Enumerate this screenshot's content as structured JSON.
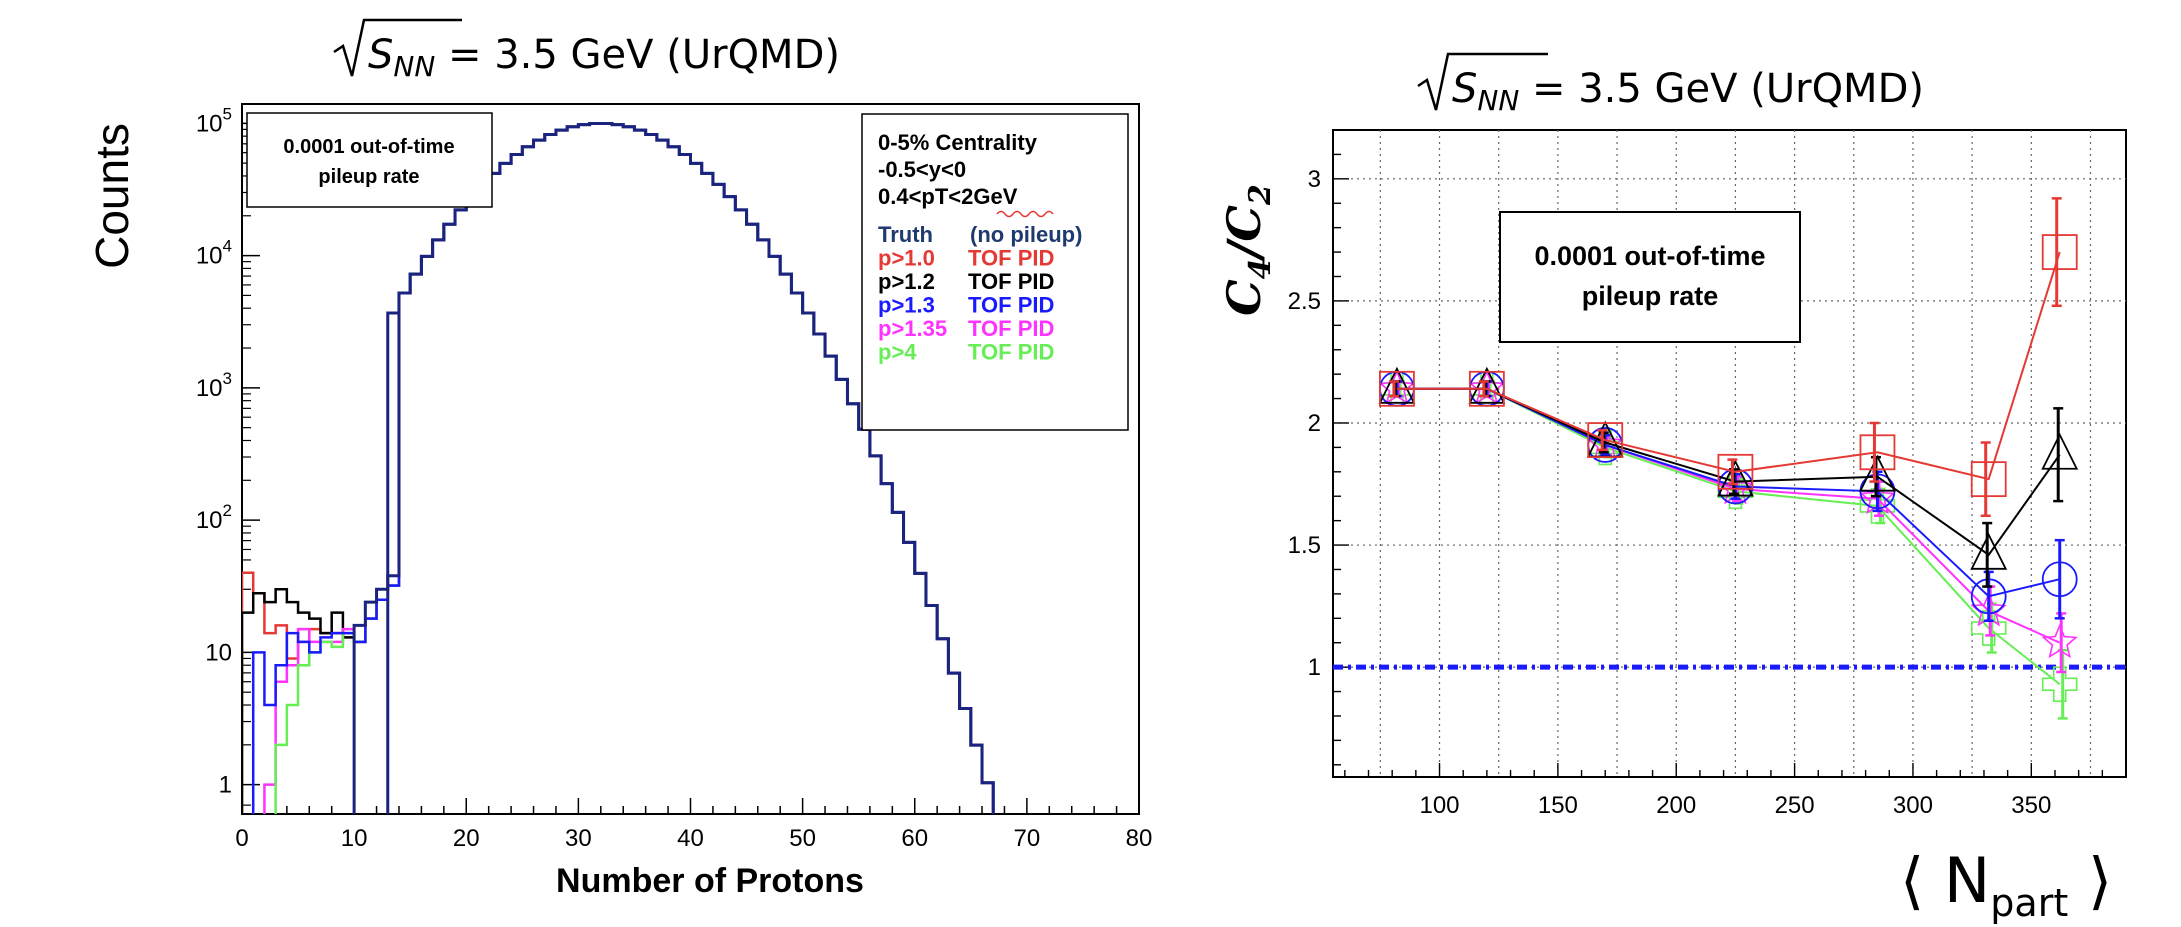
{
  "colors": {
    "truth": "#1a237e",
    "p10": "#e53935",
    "p12": "#000000",
    "p13": "#1a1aff",
    "p135": "#ff33ff",
    "p4": "#66ee55",
    "ref": "#1a1aff",
    "legend_truth_label": "#1f3a6e"
  },
  "chart_data": [
    {
      "type": "line",
      "title_sym": "S",
      "title_sub": "NN",
      "title_text": " = 3.5 GeV  (UrQMD)",
      "xlabel": "Number of Protons",
      "ylabel": "Counts",
      "yscale": "log",
      "xlim": [
        0,
        80
      ],
      "ylim": [
        0.6,
        140000
      ],
      "xticks": [
        "0",
        "10",
        "20",
        "30",
        "40",
        "50",
        "60",
        "70",
        "80"
      ],
      "yticks": [
        {
          "v": 1,
          "label": "1"
        },
        {
          "v": 10,
          "label": "10"
        },
        {
          "v": 100,
          "label": "10",
          "sup": "2"
        },
        {
          "v": 1000,
          "label": "10",
          "sup": "3"
        },
        {
          "v": 10000,
          "label": "10",
          "sup": "4"
        },
        {
          "v": 100000,
          "label": "10",
          "sup": "5"
        }
      ],
      "annotation": [
        "0.0001 out-of-time",
        "pileup rate"
      ],
      "legend_header": [
        "0-5% Centrality",
        "-0.5<y<0",
        "0.4<pT<2GeV"
      ],
      "legend": [
        {
          "name": "Truth",
          "desc": "(no pileup)",
          "color_key": "truth",
          "label_color_key": "legend_truth_label"
        },
        {
          "name": "p>1.0",
          "desc": "TOF PID",
          "color_key": "p10"
        },
        {
          "name": "p>1.2",
          "desc": "TOF PID",
          "color_key": "p12"
        },
        {
          "name": "p>1.3",
          "desc": "TOF PID",
          "color_key": "p13"
        },
        {
          "name": "p>1.35",
          "desc": "TOF PID",
          "color_key": "p135"
        },
        {
          "name": "p>4",
          "desc": "TOF PID",
          "color_key": "p4"
        }
      ],
      "truth_peak": {
        "mean": 32,
        "sigma": 7.2,
        "amplitude": 100000
      },
      "truth_tail": [
        {
          "x": 60,
          "y": 3
        },
        {
          "x": 61,
          "y": 3
        },
        {
          "x": 62,
          "y": 1.5
        },
        {
          "x": 63,
          "y": 1.5
        }
      ],
      "low_bins": [
        0,
        1,
        2,
        3,
        4,
        5,
        6,
        7,
        8,
        9,
        10,
        11,
        12,
        13
      ],
      "low_series": [
        {
          "color_key": "p10",
          "values": [
            40,
            28,
            14,
            16,
            9,
            12,
            15,
            14,
            14,
            13,
            12,
            18,
            25,
            32
          ]
        },
        {
          "color_key": "p12",
          "values": [
            20,
            28,
            24,
            30,
            24,
            20,
            18,
            14,
            20,
            13,
            12,
            18,
            25,
            32
          ]
        },
        {
          "color_key": "p135",
          "values": [
            0,
            0,
            1,
            6,
            8,
            15,
            12,
            12,
            12,
            15,
            12,
            18,
            25,
            32
          ]
        },
        {
          "color_key": "p4",
          "values": [
            0,
            0,
            0,
            2,
            4,
            8,
            10,
            12,
            11,
            14,
            12,
            18,
            25,
            32
          ]
        },
        {
          "color_key": "p13",
          "values": [
            0,
            10,
            4,
            8,
            14,
            12,
            10,
            13,
            14,
            14,
            12,
            18,
            25,
            32
          ]
        },
        {
          "color_key": "truth",
          "values": [
            0,
            0,
            0,
            0,
            0,
            0,
            0,
            0,
            0,
            0,
            16,
            24,
            30,
            38
          ]
        }
      ]
    },
    {
      "type": "scatter",
      "title_sym": "S",
      "title_sub": "NN",
      "title_text": " = 3.5 GeV (UrQMD)",
      "ylabel_main": "C",
      "ylabel_num": "4",
      "ylabel_den": "2",
      "xlabel": "N",
      "xlabel_sub": "part",
      "xlim": [
        55,
        390
      ],
      "ylim": [
        0.55,
        3.2
      ],
      "xticks": [
        100,
        150,
        200,
        250,
        300,
        350
      ],
      "yticks": [
        {
          "v": 1,
          "label": "1"
        },
        {
          "v": 1.5,
          "label": "1.5"
        },
        {
          "v": 2,
          "label": "2"
        },
        {
          "v": 2.5,
          "label": "2.5"
        },
        {
          "v": 3,
          "label": "3"
        }
      ],
      "annotation": [
        "0.0001 out-of-time",
        "pileup rate"
      ],
      "reference_line": 1,
      "x": [
        82,
        120,
        170,
        225,
        285,
        332,
        362
      ],
      "series": [
        {
          "color_key": "p10",
          "marker": "square",
          "y": [
            2.14,
            2.14,
            1.93,
            1.8,
            1.88,
            1.77,
            2.7
          ],
          "err": [
            0.03,
            0.03,
            0.04,
            0.05,
            0.12,
            0.15,
            0.22
          ]
        },
        {
          "color_key": "p12",
          "marker": "triangle",
          "y": [
            2.14,
            2.14,
            1.92,
            1.76,
            1.78,
            1.46,
            1.87
          ],
          "err": [
            0.03,
            0.03,
            0.04,
            0.05,
            0.08,
            0.13,
            0.19
          ]
        },
        {
          "color_key": "p13",
          "marker": "circle",
          "y": [
            2.14,
            2.14,
            1.91,
            1.74,
            1.72,
            1.29,
            1.36
          ],
          "err": [
            0.03,
            0.03,
            0.04,
            0.05,
            0.08,
            0.1,
            0.16
          ]
        },
        {
          "color_key": "p135",
          "marker": "star",
          "y": [
            2.14,
            2.14,
            1.91,
            1.73,
            1.69,
            1.23,
            1.1
          ],
          "err": [
            0.03,
            0.03,
            0.04,
            0.05,
            0.07,
            0.1,
            0.12
          ]
        },
        {
          "color_key": "p4",
          "marker": "cross",
          "y": [
            2.14,
            2.14,
            1.9,
            1.72,
            1.66,
            1.16,
            0.93
          ],
          "err": [
            0.03,
            0.03,
            0.04,
            0.05,
            0.07,
            0.1,
            0.14
          ]
        }
      ]
    }
  ]
}
